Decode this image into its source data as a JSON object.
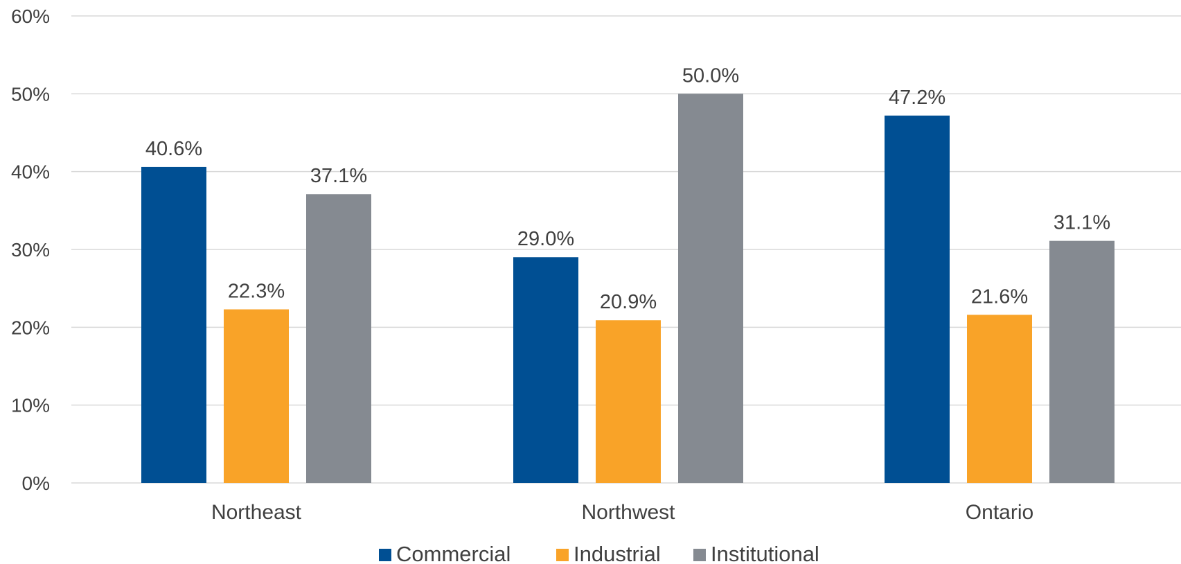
{
  "chart_data": {
    "type": "bar",
    "categories": [
      "Northeast",
      "Northwest",
      "Ontario"
    ],
    "series": [
      {
        "name": "Commercial",
        "values": [
          40.6,
          29.0,
          47.2
        ],
        "labels": [
          "40.6%",
          "29.0%",
          "47.2%"
        ],
        "color": "#004f93"
      },
      {
        "name": "Industrial",
        "values": [
          22.3,
          20.9,
          21.6
        ],
        "labels": [
          "22.3%",
          "20.9%",
          "21.6%"
        ],
        "color": "#f9a328"
      },
      {
        "name": "Institutional",
        "values": [
          37.1,
          50.0,
          31.1
        ],
        "labels": [
          "37.1%",
          "50.0%",
          "31.1%"
        ],
        "color": "#858a91"
      }
    ],
    "yticks": [
      "0%",
      "10%",
      "20%",
      "30%",
      "40%",
      "50%",
      "60%"
    ],
    "ylim": [
      0,
      60
    ],
    "grid": true,
    "legend_position": "bottom"
  }
}
